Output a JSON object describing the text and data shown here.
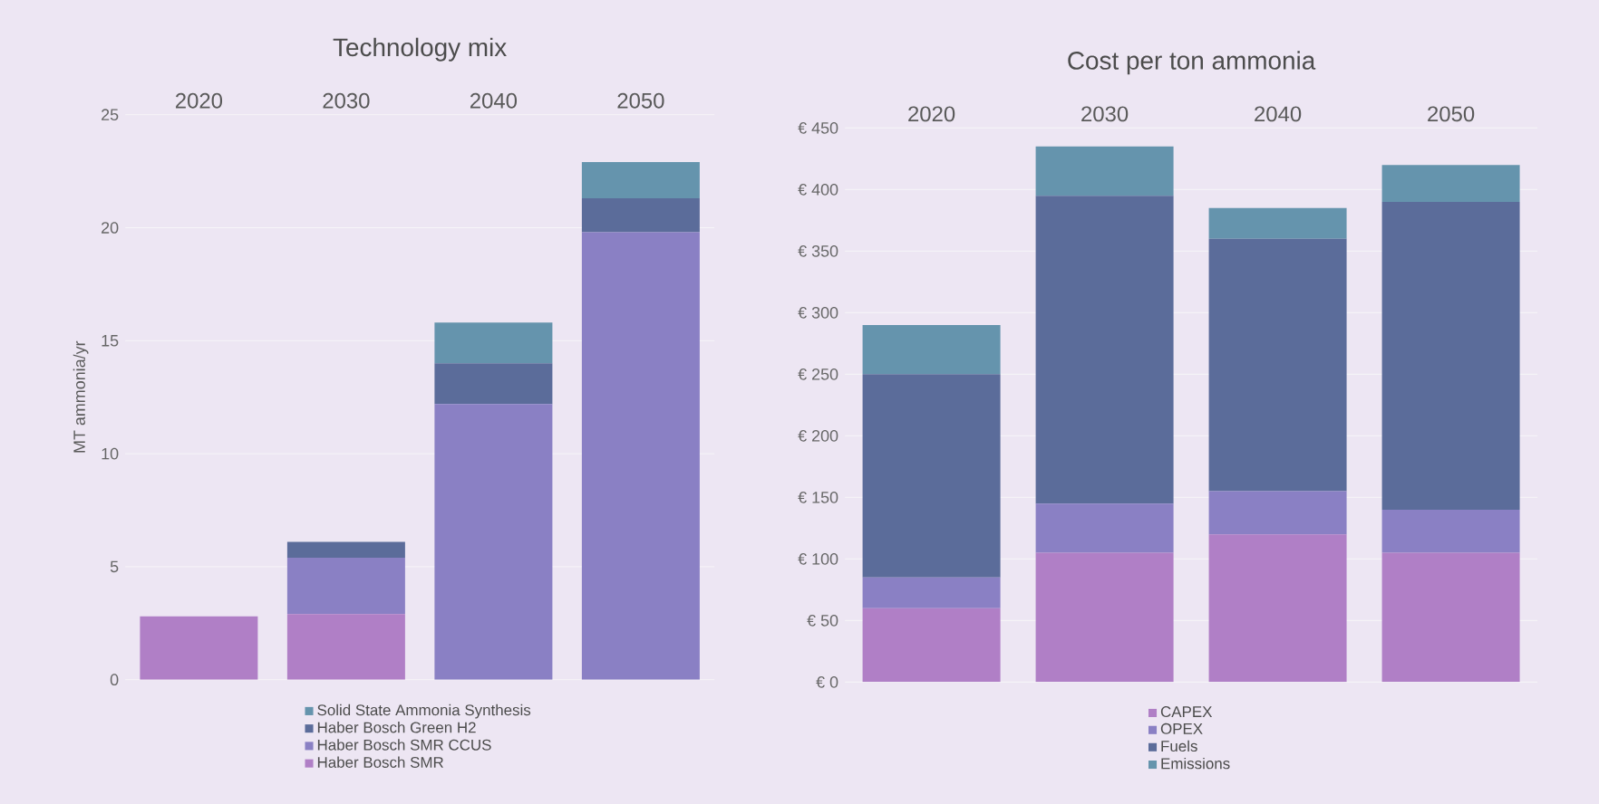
{
  "chart_data": [
    {
      "type": "bar",
      "title": "Technology mix",
      "ylabel": "MT ammonia/yr",
      "stacked": true,
      "categories": [
        "2020",
        "2030",
        "2040",
        "2050"
      ],
      "ylim": [
        0,
        25
      ],
      "yticks": [
        0,
        5,
        10,
        15,
        20,
        25
      ],
      "grid": "y",
      "legend": "bottom",
      "series": [
        {
          "name": "Haber Bosch SMR",
          "color": "#b07fc6",
          "values": [
            2.8,
            2.9,
            0,
            0
          ]
        },
        {
          "name": "Haber Bosch SMR CCUS",
          "color": "#8a80c4",
          "values": [
            0,
            2.5,
            12.2,
            19.8
          ]
        },
        {
          "name": "Haber Bosch Green H2",
          "color": "#5b6c9a",
          "values": [
            0,
            0.7,
            1.8,
            1.5
          ]
        },
        {
          "name": "Solid State Ammonia Synthesis",
          "color": "#6594ad",
          "values": [
            0,
            0,
            1.8,
            1.6
          ]
        }
      ]
    },
    {
      "type": "bar",
      "title": "Cost per ton ammonia",
      "stacked": true,
      "categories": [
        "2020",
        "2030",
        "2040",
        "2050"
      ],
      "ylim": [
        0,
        450
      ],
      "yticks": [
        {
          "value": 0,
          "label": "€ 0"
        },
        {
          "value": 50,
          "label": "€ 50"
        },
        {
          "value": 100,
          "label": "€ 100"
        },
        {
          "value": 150,
          "label": "€ 150"
        },
        {
          "value": 200,
          "label": "€ 200"
        },
        {
          "value": 250,
          "label": "€ 250"
        },
        {
          "value": 300,
          "label": "€ 300"
        },
        {
          "value": 350,
          "label": "€ 350"
        },
        {
          "value": 400,
          "label": "€ 400"
        },
        {
          "value": 450,
          "label": "€ 450"
        }
      ],
      "grid": "y",
      "legend": "bottom",
      "series": [
        {
          "name": "CAPEX",
          "color": "#b07fc6",
          "values": [
            60,
            105,
            120,
            105
          ]
        },
        {
          "name": "OPEX",
          "color": "#8a80c4",
          "values": [
            25,
            40,
            35,
            35
          ]
        },
        {
          "name": "Fuels",
          "color": "#5b6c9a",
          "values": [
            165,
            250,
            205,
            250
          ]
        },
        {
          "name": "Emissions",
          "color": "#6594ad",
          "values": [
            40,
            40,
            25,
            30
          ]
        }
      ]
    }
  ]
}
